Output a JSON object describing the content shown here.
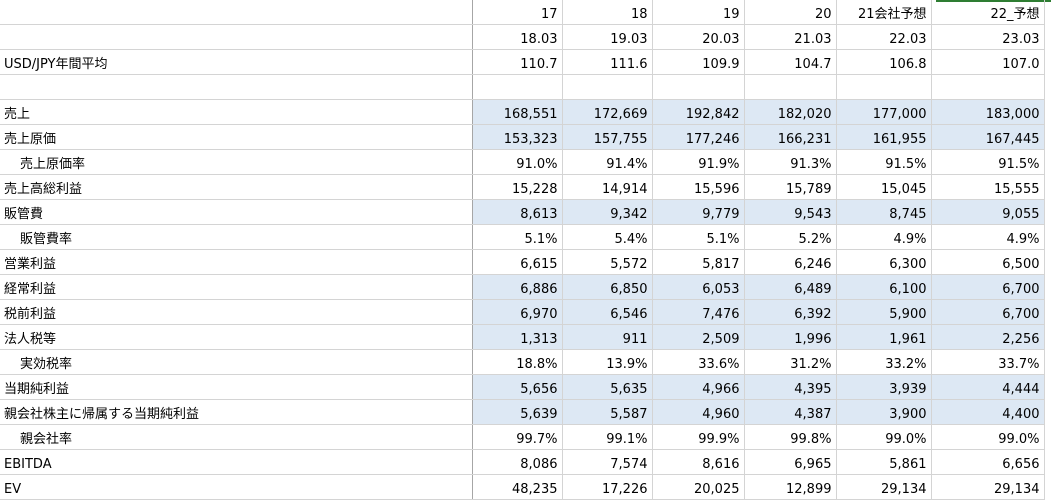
{
  "header": {
    "years": [
      "17",
      "18",
      "19",
      "20",
      "21会社予想",
      "22_予想"
    ],
    "periods": [
      "18.03",
      "19.03",
      "20.03",
      "21.03",
      "22.03",
      "23.03"
    ]
  },
  "fx": {
    "label": "USD/JPY年間平均",
    "values": [
      "110.7",
      "111.6",
      "109.9",
      "104.7",
      "106.8",
      "107.0"
    ]
  },
  "rows": [
    {
      "label": "売上",
      "indent": false,
      "highlight": true,
      "values": [
        "168,551",
        "172,669",
        "192,842",
        "182,020",
        "177,000",
        "183,000"
      ]
    },
    {
      "label": "売上原価",
      "indent": false,
      "highlight": true,
      "values": [
        "153,323",
        "157,755",
        "177,246",
        "166,231",
        "161,955",
        "167,445"
      ]
    },
    {
      "label": "売上原価率",
      "indent": true,
      "highlight": false,
      "values": [
        "91.0%",
        "91.4%",
        "91.9%",
        "91.3%",
        "91.5%",
        "91.5%"
      ]
    },
    {
      "label": "売上高総利益",
      "indent": false,
      "highlight": false,
      "values": [
        "15,228",
        "14,914",
        "15,596",
        "15,789",
        "15,045",
        "15,555"
      ]
    },
    {
      "label": "販管費",
      "indent": false,
      "highlight": true,
      "values": [
        "8,613",
        "9,342",
        "9,779",
        "9,543",
        "8,745",
        "9,055"
      ]
    },
    {
      "label": "販管費率",
      "indent": true,
      "highlight": false,
      "values": [
        "5.1%",
        "5.4%",
        "5.1%",
        "5.2%",
        "4.9%",
        "4.9%"
      ]
    },
    {
      "label": "営業利益",
      "indent": false,
      "highlight": false,
      "values": [
        "6,615",
        "5,572",
        "5,817",
        "6,246",
        "6,300",
        "6,500"
      ]
    },
    {
      "label": "経常利益",
      "indent": false,
      "highlight": true,
      "values": [
        "6,886",
        "6,850",
        "6,053",
        "6,489",
        "6,100",
        "6,700"
      ]
    },
    {
      "label": "税前利益",
      "indent": false,
      "highlight": true,
      "values": [
        "6,970",
        "6,546",
        "7,476",
        "6,392",
        "5,900",
        "6,700"
      ]
    },
    {
      "label": "法人税等",
      "indent": false,
      "highlight": true,
      "values": [
        "1,313",
        "911",
        "2,509",
        "1,996",
        "1,961",
        "2,256"
      ]
    },
    {
      "label": "実効税率",
      "indent": true,
      "highlight": false,
      "values": [
        "18.8%",
        "13.9%",
        "33.6%",
        "31.2%",
        "33.2%",
        "33.7%"
      ]
    },
    {
      "label": "当期純利益",
      "indent": false,
      "highlight": true,
      "values": [
        "5,656",
        "5,635",
        "4,966",
        "4,395",
        "3,939",
        "4,444"
      ]
    },
    {
      "label": "親会社株主に帰属する当期純利益",
      "indent": false,
      "highlight": true,
      "values": [
        "5,639",
        "5,587",
        "4,960",
        "4,387",
        "3,900",
        "4,400"
      ]
    },
    {
      "label": "親会社率",
      "indent": true,
      "highlight": false,
      "values": [
        "99.7%",
        "99.1%",
        "99.9%",
        "99.8%",
        "99.0%",
        "99.0%"
      ]
    },
    {
      "label": "EBITDA",
      "indent": false,
      "highlight": false,
      "values": [
        "8,086",
        "7,574",
        "8,616",
        "6,965",
        "5,861",
        "6,656"
      ]
    },
    {
      "label": "EV",
      "indent": false,
      "highlight": false,
      "values": [
        "48,235",
        "17,226",
        "20,025",
        "12,899",
        "29,134",
        "29,134"
      ]
    }
  ],
  "colors": {
    "highlight_fill": "#dde8f4",
    "grid_line": "#d4d4d4",
    "selection_accent": "#2e7d32"
  }
}
